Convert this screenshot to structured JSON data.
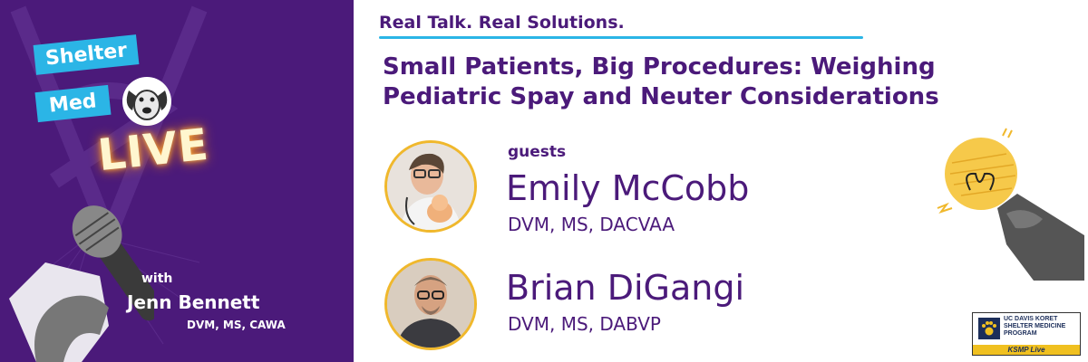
{
  "left_panel": {
    "logo": {
      "word1": "Shelter",
      "word2": "Med",
      "word3": "LIVE"
    },
    "with_label": "with",
    "host_name": "Jenn Bennett",
    "host_credentials": "DVM, MS, CAWA"
  },
  "header": {
    "tagline": "Real Talk. Real Solutions.",
    "title_line1": "Small Patients, Big Procedures: Weighing",
    "title_line2": "Pediatric Spay and Neuter Considerations"
  },
  "guests": {
    "label": "guests",
    "items": [
      {
        "name": "Emily McCobb",
        "credentials": "DVM, MS, DACVAA"
      },
      {
        "name": "Brian DiGangi",
        "credentials": "DVM, MS, DABVP"
      }
    ]
  },
  "badge": {
    "line1": "UC DAVIS KORET",
    "line2": "SHELTER MEDICINE",
    "line3": "PROGRAM",
    "footer": "KSMP Live"
  },
  "colors": {
    "purple": "#4b1a7a",
    "blue": "#2bb5e6",
    "gold": "#f0b82c"
  }
}
